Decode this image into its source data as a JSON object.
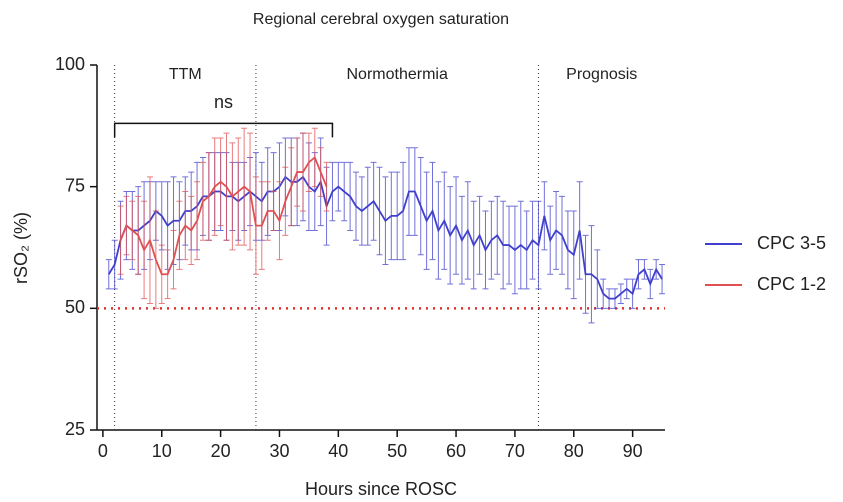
{
  "chart_data": {
    "type": "line",
    "title": "Regional cerebral oxygen saturation",
    "x_label": "Hours since ROSC",
    "y_label": "rSO₂ (%)",
    "xlim": [
      -1,
      95.5
    ],
    "ylim": [
      25,
      100
    ],
    "xticks": [
      0,
      10,
      20,
      30,
      40,
      50,
      60,
      70,
      80,
      90
    ],
    "yticks": [
      25,
      50,
      75,
      100
    ],
    "threshold": 50,
    "threshold_color": "#e03030",
    "phases": [
      {
        "label": "TTM",
        "start": 2
      },
      {
        "label": "Normothermia",
        "start": 26
      },
      {
        "label": "Prognosis",
        "start": 74
      }
    ],
    "significance": {
      "label": "ns",
      "x": [
        2,
        39
      ],
      "y": 88
    },
    "legend": "right",
    "series": [
      {
        "name": "CPC 3-5",
        "color": "#4040cc",
        "x": [
          1,
          2,
          3,
          4,
          5,
          6,
          7,
          8,
          9,
          10,
          11,
          12,
          13,
          14,
          15,
          16,
          17,
          18,
          19,
          20,
          21,
          22,
          23,
          24,
          25,
          26,
          27,
          28,
          29,
          30,
          31,
          32,
          33,
          34,
          35,
          36,
          37,
          38,
          39,
          40,
          41,
          42,
          43,
          44,
          45,
          46,
          47,
          48,
          49,
          50,
          51,
          52,
          53,
          54,
          55,
          56,
          57,
          58,
          59,
          60,
          61,
          62,
          63,
          64,
          65,
          66,
          67,
          68,
          69,
          70,
          71,
          72,
          73,
          74,
          75,
          76,
          77,
          78,
          79,
          80,
          81,
          82,
          83,
          84,
          85,
          86,
          87,
          88,
          89,
          90,
          91,
          92,
          93,
          94,
          95
        ],
        "values": [
          57,
          59,
          64,
          67,
          66,
          66,
          67,
          68,
          70,
          69,
          67,
          68,
          68,
          70,
          70,
          71,
          73,
          73,
          74,
          74,
          73,
          73,
          72,
          73,
          74,
          73,
          72,
          74,
          74,
          75,
          77,
          76,
          76,
          77,
          75,
          74,
          76,
          71,
          74,
          75,
          74,
          73,
          71,
          70,
          71,
          72,
          70,
          68,
          69,
          69,
          70,
          74,
          74,
          71,
          68,
          70,
          66,
          68,
          65,
          67,
          64,
          66,
          63,
          65,
          62,
          64,
          65,
          63,
          63,
          62,
          63,
          62,
          64,
          63,
          69,
          64,
          66,
          65,
          62,
          61,
          66,
          57,
          57,
          56,
          53,
          52,
          52,
          53,
          54,
          53,
          57,
          58,
          55,
          58,
          56
        ],
        "errors": [
          3,
          5,
          8,
          7,
          8,
          9,
          9,
          8,
          6,
          7,
          9,
          9,
          8,
          7,
          8,
          9,
          8,
          9,
          8,
          8,
          9,
          7,
          8,
          7,
          7,
          9,
          8,
          9,
          8,
          9,
          8,
          9,
          9,
          9,
          9,
          8,
          9,
          8,
          6,
          5,
          6,
          7,
          7,
          7,
          8,
          8,
          9,
          9,
          9,
          9,
          10,
          9,
          9,
          10,
          10,
          10,
          10,
          10,
          10,
          10,
          9,
          10,
          9,
          8,
          8,
          8,
          8,
          9,
          8,
          9,
          9,
          8,
          8,
          9,
          7,
          7,
          8,
          8,
          8,
          9,
          10,
          8,
          10,
          6,
          3,
          2,
          2,
          2,
          2,
          3,
          3,
          2,
          3,
          2,
          3
        ]
      },
      {
        "name": "CPC 1-2",
        "color": "#e05050",
        "x": [
          3,
          4,
          5,
          6,
          7,
          8,
          9,
          10,
          11,
          12,
          13,
          14,
          15,
          16,
          17,
          18,
          19,
          20,
          21,
          22,
          23,
          24,
          25,
          26,
          27,
          28,
          29,
          30,
          31,
          32,
          33,
          34,
          35,
          36,
          37,
          38
        ],
        "values": [
          64,
          67,
          66,
          65,
          62,
          64,
          60,
          57,
          57,
          60,
          65,
          67,
          66,
          68,
          72,
          73,
          75,
          76,
          75,
          73,
          74,
          75,
          74,
          67,
          67,
          70,
          70,
          68,
          72,
          75,
          78,
          78,
          80,
          81,
          78,
          75
        ],
        "errors": [
          7,
          6,
          6,
          8,
          10,
          13,
          10,
          6,
          5,
          6,
          7,
          7,
          7,
          8,
          8,
          9,
          10,
          9,
          11,
          11,
          11,
          12,
          12,
          10,
          9,
          6,
          4,
          8,
          7,
          8,
          7,
          8,
          6,
          6,
          5,
          5
        ]
      }
    ]
  }
}
